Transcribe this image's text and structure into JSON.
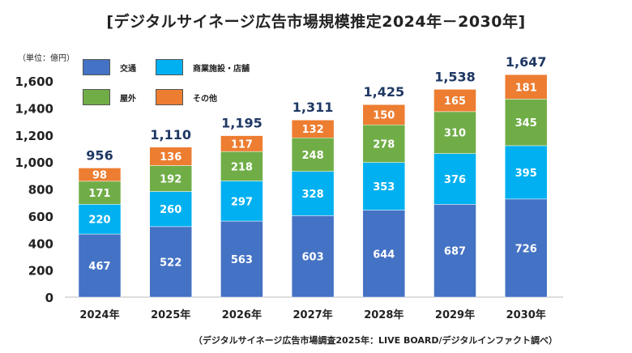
{
  "chart_data": {
    "type": "bar",
    "stacked": true,
    "title": "[デジタルサイネージ広告市場規模推定2024年－2030年]",
    "unit_label": "（単位：億円）",
    "source": "（デジタルサイネージ広告市場調査2025年：LIVE BOARD/デジタルインファクト調べ）",
    "categories": [
      "2024年",
      "2025年",
      "2026年",
      "2027年",
      "2028年",
      "2029年",
      "2030年"
    ],
    "series": [
      {
        "name": "交通",
        "color": "#4472C4",
        "values": [
          467,
          522,
          563,
          603,
          644,
          687,
          726
        ]
      },
      {
        "name": "商業施設・店舗",
        "color": "#00B0F0",
        "values": [
          220,
          260,
          297,
          328,
          353,
          376,
          395
        ]
      },
      {
        "name": "屋外",
        "color": "#70AD47",
        "values": [
          171,
          192,
          218,
          248,
          278,
          310,
          345
        ]
      },
      {
        "name": "その他",
        "color": "#ED7D31",
        "values": [
          98,
          136,
          117,
          132,
          150,
          165,
          181
        ]
      }
    ],
    "totals": [
      "956",
      "1,110",
      "1,195",
      "1,311",
      "1,425",
      "1,538",
      "1,647"
    ],
    "total_color": "#1F3864",
    "ylim": [
      0,
      1600
    ],
    "yticks": [
      "0",
      "200",
      "400",
      "600",
      "800",
      "1,000",
      "1,200",
      "1,400",
      "1,600"
    ],
    "grid": false,
    "legend_position": "top-left"
  }
}
